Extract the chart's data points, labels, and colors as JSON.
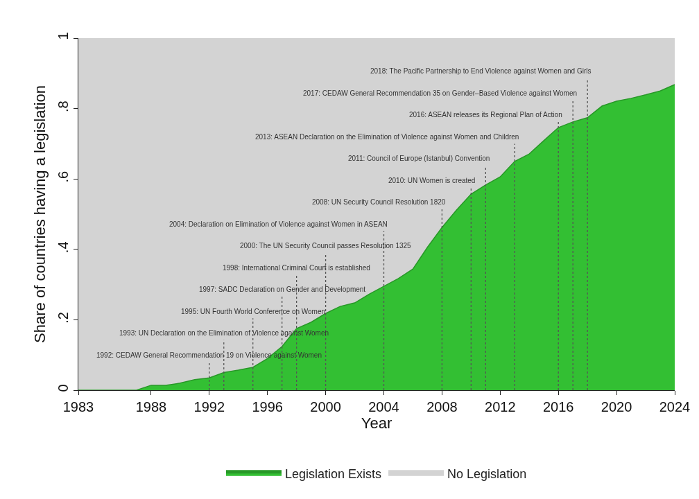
{
  "chart_data": {
    "type": "area",
    "xlabel": "Year",
    "ylabel": "Share of countries having a legislation",
    "x": [
      1983,
      1984,
      1985,
      1986,
      1987,
      1988,
      1989,
      1990,
      1991,
      1992,
      1993,
      1994,
      1995,
      1996,
      1997,
      1998,
      1999,
      2000,
      2001,
      2002,
      2003,
      2004,
      2005,
      2006,
      2007,
      2008,
      2009,
      2010,
      2011,
      2012,
      2013,
      2014,
      2015,
      2016,
      2017,
      2018,
      2019,
      2020,
      2021,
      2022,
      2023,
      2024
    ],
    "series": [
      {
        "name": "No Legislation",
        "color": "#d3d3d3",
        "values": [
          1,
          1,
          1,
          1,
          1,
          1,
          1,
          1,
          1,
          1,
          1,
          1,
          1,
          1,
          1,
          1,
          1,
          1,
          1,
          1,
          1,
          1,
          1,
          1,
          1,
          1,
          1,
          1,
          1,
          1,
          1,
          1,
          1,
          1,
          1,
          1,
          1,
          1,
          1,
          1,
          1,
          1
        ]
      },
      {
        "name": "Legislation Exists",
        "color": "#33bf33",
        "values": [
          0,
          0,
          0,
          0,
          0,
          0.014,
          0.014,
          0.02,
          0.03,
          0.035,
          0.05,
          0.057,
          0.065,
          0.09,
          0.124,
          0.175,
          0.193,
          0.218,
          0.238,
          0.248,
          0.273,
          0.295,
          0.317,
          0.344,
          0.406,
          0.462,
          0.512,
          0.557,
          0.583,
          0.606,
          0.65,
          0.671,
          0.709,
          0.746,
          0.762,
          0.774,
          0.807,
          0.821,
          0.829,
          0.839,
          0.85,
          0.868
        ]
      }
    ],
    "xlim": [
      1983,
      2024
    ],
    "xticks": [
      1983,
      1988,
      1992,
      1996,
      2000,
      2004,
      2008,
      2012,
      2016,
      2020,
      2024
    ],
    "ylim": [
      0,
      1
    ],
    "yticks": [
      0,
      {
        "value": 0.2,
        "label": ".2"
      },
      {
        "value": 0.4,
        "label": ".4"
      },
      {
        "value": 0.6,
        "label": ".6"
      },
      {
        "value": 0.8,
        "label": ".8"
      },
      1
    ],
    "legend": "bottom",
    "ref_lines": [
      {
        "axis": "x",
        "value": 1992,
        "label": "1992: CEDAW General Recommendation 19 on Violence against Women",
        "line_style": "dotted"
      },
      {
        "axis": "x",
        "value": 1993,
        "label": "1993: UN Declaration on the Elimination of Violence against Women",
        "line_style": "dotted"
      },
      {
        "axis": "x",
        "value": 1995,
        "label": "1995: UN Fourth World Conference on Women",
        "line_style": "dotted"
      },
      {
        "axis": "x",
        "value": 1997,
        "label": "1997: SADC Declaration on Gender and Development",
        "line_style": "dotted"
      },
      {
        "axis": "x",
        "value": 1998,
        "label": "1998: International Criminal Court is established",
        "line_style": "dotted"
      },
      {
        "axis": "x",
        "value": 2000,
        "label": "2000: The UN Security Council passes Resolution 1325",
        "line_style": "dotted"
      },
      {
        "axis": "x",
        "value": 2004,
        "label": "2004: Declaration on Elimination of Violence against Women in ASEAN",
        "line_style": "dotted"
      },
      {
        "axis": "x",
        "value": 2008,
        "label": "2008: UN Security Council Resolution 1820",
        "line_style": "dotted"
      },
      {
        "axis": "x",
        "value": 2010,
        "label": "2010: UN Women is created",
        "line_style": "dotted"
      },
      {
        "axis": "x",
        "value": 2011,
        "label": "2011: Council of Europe (Istanbul) Convention",
        "line_style": "dotted"
      },
      {
        "axis": "x",
        "value": 2013,
        "label": "2013: ASEAN Declaration on the Elimination of Violence against Women and Children",
        "line_style": "dotted"
      },
      {
        "axis": "x",
        "value": 2016,
        "label": "2016: ASEAN releases its Regional Plan of Action",
        "line_style": "dotted"
      },
      {
        "axis": "x",
        "value": 2017,
        "label": "2017: CEDAW General Recommendation 35 on Gender–Based Violence against Women",
        "line_style": "dotted"
      },
      {
        "axis": "x",
        "value": 2018,
        "label": "2018: The Pacific Partnership to End Violence against Women and Girls",
        "line_style": "dotted"
      }
    ]
  }
}
